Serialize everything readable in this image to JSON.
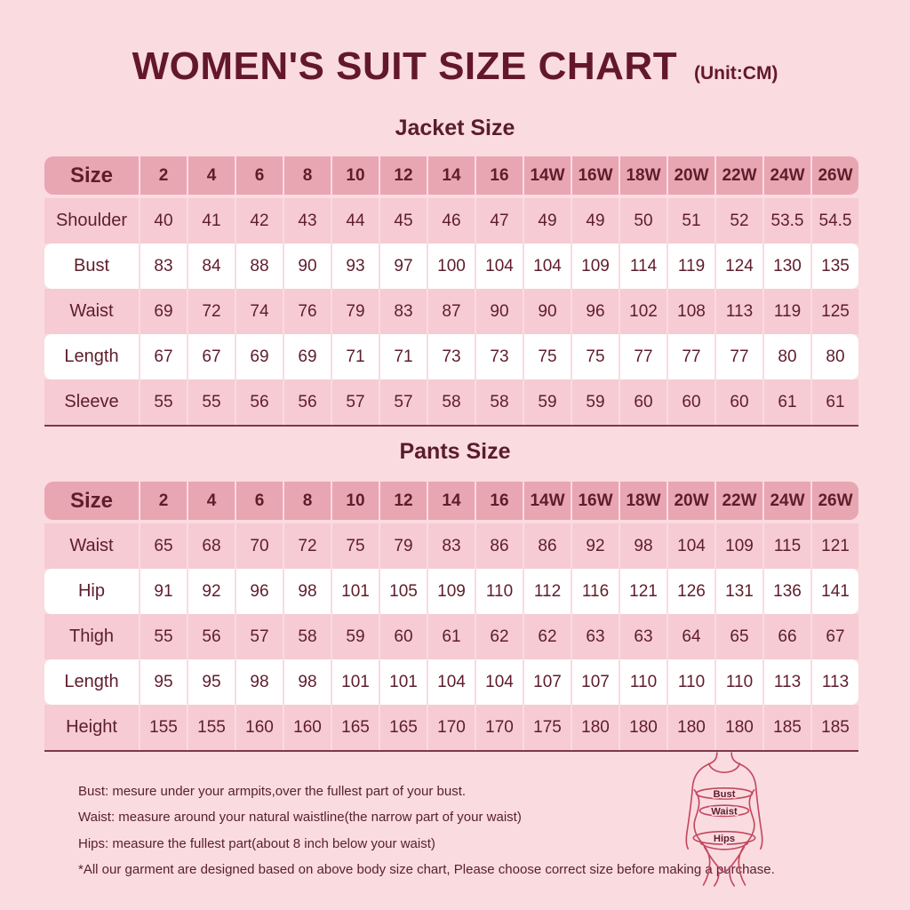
{
  "header": {
    "title": "WOMEN'S SUIT SIZE CHART",
    "unit": "(Unit:CM)"
  },
  "chart_data": [
    {
      "type": "table",
      "title": "Jacket Size",
      "columns": [
        "Size",
        "2",
        "4",
        "6",
        "8",
        "10",
        "12",
        "14",
        "16",
        "14W",
        "16W",
        "18W",
        "20W",
        "22W",
        "24W",
        "26W"
      ],
      "rows": [
        {
          "label": "Shoulder",
          "values": [
            40,
            41,
            42,
            43,
            44,
            45,
            46,
            47,
            49,
            49,
            50,
            51,
            52,
            53.5,
            54.5
          ]
        },
        {
          "label": "Bust",
          "values": [
            83,
            84,
            88,
            90,
            93,
            97,
            100,
            104,
            104,
            109,
            114,
            119,
            124,
            130,
            135
          ]
        },
        {
          "label": "Waist",
          "values": [
            69,
            72,
            74,
            76,
            79,
            83,
            87,
            90,
            90,
            96,
            102,
            108,
            113,
            119,
            125
          ]
        },
        {
          "label": "Length",
          "values": [
            67,
            67,
            69,
            69,
            71,
            71,
            73,
            73,
            75,
            75,
            77,
            77,
            77,
            80,
            80
          ]
        },
        {
          "label": "Sleeve",
          "values": [
            55,
            55,
            56,
            56,
            57,
            57,
            58,
            58,
            59,
            59,
            60,
            60,
            60,
            61,
            61
          ]
        }
      ]
    },
    {
      "type": "table",
      "title": "Pants Size",
      "columns": [
        "Size",
        "2",
        "4",
        "6",
        "8",
        "10",
        "12",
        "14",
        "16",
        "14W",
        "16W",
        "18W",
        "20W",
        "22W",
        "24W",
        "26W"
      ],
      "rows": [
        {
          "label": "Waist",
          "values": [
            65,
            68,
            70,
            72,
            75,
            79,
            83,
            86,
            86,
            92,
            98,
            104,
            109,
            115,
            121
          ]
        },
        {
          "label": "Hip",
          "values": [
            91,
            92,
            96,
            98,
            101,
            105,
            109,
            110,
            112,
            116,
            121,
            126,
            131,
            136,
            141
          ]
        },
        {
          "label": "Thigh",
          "values": [
            55,
            56,
            57,
            58,
            59,
            60,
            61,
            62,
            62,
            63,
            63,
            64,
            65,
            66,
            67
          ]
        },
        {
          "label": "Length",
          "values": [
            95,
            95,
            98,
            98,
            101,
            101,
            104,
            104,
            107,
            107,
            110,
            110,
            110,
            113,
            113
          ]
        },
        {
          "label": "Height",
          "values": [
            155,
            155,
            160,
            160,
            165,
            165,
            170,
            170,
            175,
            180,
            180,
            180,
            180,
            185,
            185
          ]
        }
      ]
    }
  ],
  "notes": [
    "Bust: mesure under your armpits,over the fullest part of your bust.",
    "Waist: measure around your natural waistline(the narrow part of your waist)",
    "Hips: measure the fullest part(about 8 inch below your waist)",
    "*All our garment are designed based on above body size chart, Please choose correct size before making a purchase."
  ],
  "figure": {
    "labels": [
      "Bust",
      "Waist",
      "Hips"
    ]
  },
  "colors": {
    "background": "#FADBE0",
    "header_row": "#E8A6B2",
    "pink_row": "#F6CBD3",
    "white_row": "#FFFFFF",
    "title_text": "#63182A",
    "body_text": "#5E1D2B",
    "figure_outline": "#C2485E",
    "table_bottom_line": "#7B3949"
  }
}
